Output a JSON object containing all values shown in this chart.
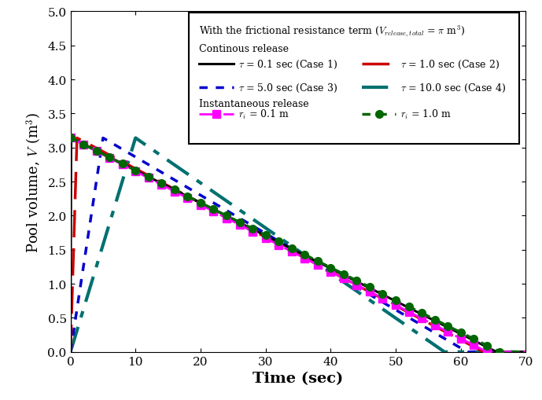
{
  "xlabel": "Time (sec)",
  "ylabel": "Pool volume, $V$ (m$^3$)",
  "xlim": [
    0,
    70
  ],
  "ylim": [
    0.0,
    5.0
  ],
  "yticks": [
    0.0,
    0.5,
    1.0,
    1.5,
    2.0,
    2.5,
    3.0,
    3.5,
    4.0,
    4.5,
    5.0
  ],
  "xticks": [
    0,
    10,
    20,
    30,
    40,
    50,
    60,
    70
  ],
  "V_total": 3.14159265,
  "tau1": 0.1,
  "tau2": 1.0,
  "tau3": 5.0,
  "tau4": 10.0,
  "ri1": 0.1,
  "ri2": 1.0,
  "end_case1": 65.5,
  "end_case2": 63.5,
  "end_case3": 61.0,
  "end_case4": 57.5,
  "end_ri1": 64.0,
  "end_ri2": 66.0,
  "color_case1": "#000000",
  "color_case2": "#cc0000",
  "color_case3": "#0000cc",
  "color_case4": "#007070",
  "color_ri1": "#ff00ff",
  "color_ri2": "#006600",
  "label_case1": "$\\tau$ = 0.1 sec (Case 1)",
  "label_case2": "$\\tau$ = 1.0 sec (Case 2)",
  "label_case3": "$\\tau$ = 5.0 sec (Case 3)",
  "label_case4": "$\\tau$ = 10.0 sec (Case 4)",
  "label_ri1": "$r_i$ = 0.1 m",
  "label_ri2": "$r_i$ = 1.0 m",
  "legend_header": "With the frictional resistance term ($V_{release,total}$ = $\\pi$ m$^3$)",
  "legend_cont": "Continous release",
  "legend_inst": "Instantaneous release"
}
